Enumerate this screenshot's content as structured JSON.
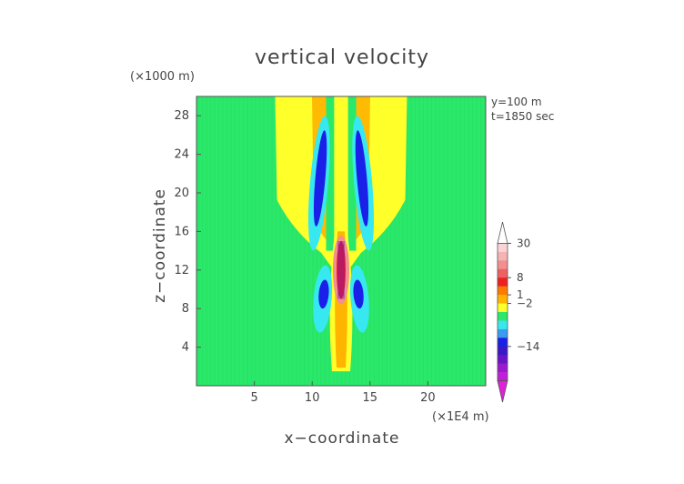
{
  "chart_data": {
    "type": "heatmap",
    "title": "vertical velocity",
    "xlabel": "x−coordinate",
    "ylabel": "z−coordinate",
    "x_unit": "(×1E4 m)",
    "y_unit": "(×1000 m)",
    "annotations": [
      "y=100 m",
      "t=1850 sec"
    ],
    "xlim": [
      0,
      25
    ],
    "ylim": [
      0,
      30
    ],
    "x_ticks": [
      5,
      10,
      15,
      20
    ],
    "y_ticks": [
      4,
      8,
      12,
      16,
      20,
      24,
      28
    ],
    "colorbar": {
      "tick_labels": [
        "30",
        "8",
        "1",
        "−2",
        "−14"
      ],
      "tick_values": [
        30,
        8,
        1,
        -2,
        -14
      ],
      "levels": [
        {
          "color": "#ffffff"
        },
        {
          "color": "#fad4d4"
        },
        {
          "color": "#f5b3b3"
        },
        {
          "color": "#f28f8f"
        },
        {
          "color": "#f06060"
        },
        {
          "color": "#ee2020"
        },
        {
          "color": "#ff7a00"
        },
        {
          "color": "#ffb400"
        },
        {
          "color": "#ffff2a"
        },
        {
          "color": "#2ae86a"
        },
        {
          "color": "#38e8f0"
        },
        {
          "color": "#3a9cf0"
        },
        {
          "color": "#1a20e8"
        },
        {
          "color": "#3a18c8"
        },
        {
          "color": "#6a14c8"
        },
        {
          "color": "#9a1ad0"
        },
        {
          "color": "#c020d8"
        },
        {
          "color": "#e020d8"
        }
      ]
    },
    "field": {
      "background_color": "#2ae86a",
      "features": [
        {
          "kind": "plume",
          "color": "#ffff2a",
          "x_range": [
            6.8,
            18.2
          ],
          "z_base": 15.5,
          "z_top": 30
        },
        {
          "kind": "stem",
          "color": "#ffb400",
          "x_center": 12.5,
          "z_range": [
            1.5,
            16
          ]
        },
        {
          "kind": "pair",
          "color": "#38e8f0",
          "x_offset": 1.9,
          "z_range": [
            14,
            28
          ]
        },
        {
          "kind": "pair",
          "color": "#1a20e8",
          "x_offset": 1.8,
          "z_range": [
            16.5,
            26.5
          ]
        },
        {
          "kind": "pair",
          "color": "#38e8f0",
          "x_offset": 1.6,
          "z_range": [
            5.5,
            12.5
          ]
        },
        {
          "kind": "pair",
          "color": "#1a20e8",
          "x_offset": 1.5,
          "z_range": [
            8,
            11
          ]
        },
        {
          "kind": "core",
          "color": "#ee2020",
          "x_center": 12.5,
          "z_range": [
            9,
            15
          ]
        }
      ]
    }
  }
}
